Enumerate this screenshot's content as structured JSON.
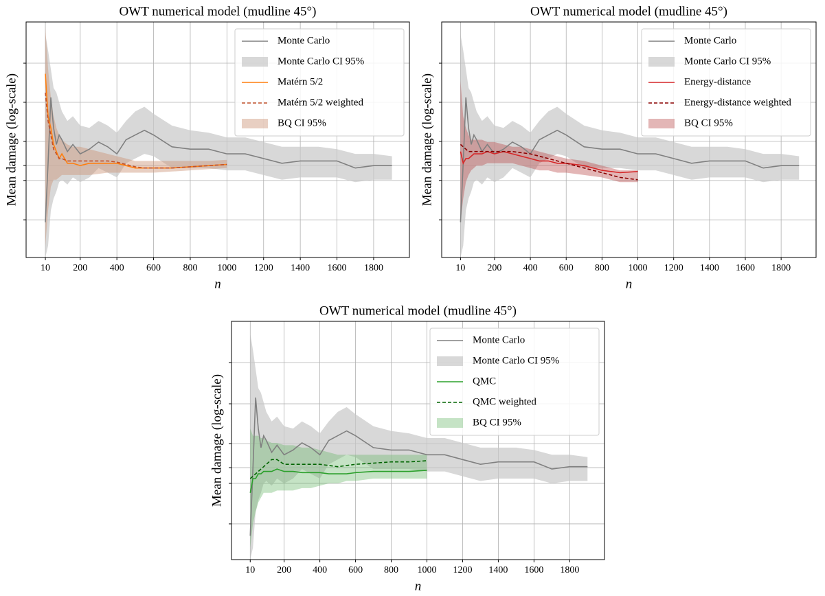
{
  "chart_data": [
    {
      "type": "line",
      "title": "OWT numerical model (mudline 45°)",
      "xlabel": "n",
      "ylabel": "Mean damage (log-scale)",
      "log_scale": true,
      "grid": true,
      "legend": "upper right",
      "x": [
        10,
        25,
        40,
        55,
        70,
        85,
        100,
        130,
        160,
        200,
        250,
        300,
        350,
        400,
        450,
        500,
        550,
        600,
        700,
        800,
        900,
        1000,
        1100,
        1200,
        1300,
        1400,
        1500,
        1600,
        1700,
        1800,
        1900
      ],
      "xlim": [
        -95,
        1995
      ],
      "xticks": [
        10,
        200,
        400,
        600,
        800,
        1000,
        1200,
        1400,
        1600,
        1800
      ],
      "ylim": [
        0,
        100
      ],
      "ygrid": [
        82.5,
        65.9,
        49.3,
        39.1,
        32.7,
        16.0
      ],
      "series": [
        {
          "name": "Monte Carlo",
          "kind": "line",
          "style": "solid",
          "color": "#808080",
          "values": [
            15,
            40,
            68,
            55,
            48,
            52,
            50,
            45,
            48,
            44,
            46,
            49,
            47,
            44,
            50,
            52,
            54,
            52,
            47,
            46,
            46,
            44,
            44,
            42,
            40,
            41,
            41,
            41,
            38,
            39,
            39
          ]
        },
        {
          "name": "Monte Carlo CI 95%",
          "kind": "band",
          "color": "#c8c8c8",
          "opacity": 0.7,
          "upper": [
            95,
            88,
            80,
            72,
            70,
            66,
            62,
            58,
            60,
            56,
            55,
            58,
            56,
            53,
            58,
            62,
            64,
            61,
            56,
            54,
            53,
            51,
            51,
            49,
            47,
            47,
            47,
            46,
            44,
            44,
            43
          ],
          "lower": [
            0,
            5,
            20,
            25,
            28,
            32,
            33,
            31,
            34,
            32,
            34,
            38,
            36,
            34,
            40,
            42,
            44,
            43,
            38,
            38,
            38,
            37,
            37,
            35,
            33,
            34,
            34,
            34,
            32,
            33,
            33
          ]
        },
        {
          "name": "Matérn 5/2",
          "kind": "line",
          "style": "solid",
          "color": "#ff7f0e",
          "values": [
            78,
            60,
            55,
            48,
            45,
            42,
            44,
            40,
            40,
            39,
            40,
            40,
            40,
            40,
            39,
            38,
            38,
            38,
            38,
            38.5,
            39,
            39.5,
            null,
            null,
            null,
            null,
            null,
            null,
            null,
            null,
            null
          ]
        },
        {
          "name": "Matérn 5/2 weighted",
          "kind": "line",
          "style": "dashed",
          "color": "#c0502c",
          "values": [
            70,
            58,
            52,
            46,
            44,
            42,
            42,
            41,
            41,
            41,
            41,
            41,
            41,
            40.5,
            39.5,
            38.5,
            38,
            38,
            38,
            38.5,
            39,
            39.5,
            null,
            null,
            null,
            null,
            null,
            null,
            null,
            null,
            null
          ]
        },
        {
          "name": "BQ CI 95%",
          "kind": "band",
          "color": "#cd9578",
          "opacity": 0.45,
          "upper": [
            98,
            80,
            68,
            60,
            55,
            52,
            50,
            48,
            47,
            47,
            46,
            45,
            44,
            43,
            42,
            41,
            41,
            41,
            41,
            41,
            41,
            41.5,
            null,
            null,
            null,
            null,
            null,
            null,
            null,
            null,
            null
          ],
          "lower": [
            5,
            20,
            30,
            33,
            33,
            34,
            35,
            35,
            35,
            35,
            35,
            35.5,
            36,
            36,
            36,
            36,
            36,
            36,
            36.5,
            37,
            37.5,
            38,
            null,
            null,
            null,
            null,
            null,
            null,
            null,
            null,
            null
          ]
        }
      ]
    },
    {
      "type": "line",
      "title": "OWT numerical model (mudline 45°)",
      "xlabel": "n",
      "ylabel": "Mean damage (log-scale)",
      "log_scale": true,
      "grid": true,
      "legend": "upper right",
      "x": [
        10,
        25,
        40,
        55,
        70,
        85,
        100,
        130,
        160,
        200,
        250,
        300,
        350,
        400,
        450,
        500,
        550,
        600,
        700,
        800,
        900,
        1000,
        1100,
        1200,
        1300,
        1400,
        1500,
        1600,
        1700,
        1800,
        1900
      ],
      "xlim": [
        -95,
        1995
      ],
      "xticks": [
        10,
        200,
        400,
        600,
        800,
        1000,
        1200,
        1400,
        1600,
        1800
      ],
      "ylim": [
        0,
        100
      ],
      "ygrid": [
        82.5,
        65.9,
        49.3,
        39.1,
        32.7,
        16.0
      ],
      "series": [
        {
          "name": "Monte Carlo",
          "kind": "line",
          "style": "solid",
          "color": "#808080",
          "values": [
            15,
            40,
            68,
            55,
            48,
            52,
            50,
            45,
            48,
            44,
            46,
            49,
            47,
            44,
            50,
            52,
            54,
            52,
            47,
            46,
            46,
            44,
            44,
            42,
            40,
            41,
            41,
            41,
            38,
            39,
            39
          ]
        },
        {
          "name": "Monte Carlo CI 95%",
          "kind": "band",
          "color": "#c8c8c8",
          "opacity": 0.7,
          "upper": [
            95,
            88,
            80,
            72,
            70,
            66,
            62,
            58,
            60,
            56,
            55,
            58,
            56,
            53,
            58,
            62,
            64,
            61,
            56,
            54,
            53,
            51,
            51,
            49,
            47,
            47,
            47,
            46,
            44,
            44,
            43
          ],
          "lower": [
            0,
            5,
            20,
            25,
            28,
            32,
            33,
            31,
            34,
            32,
            34,
            38,
            36,
            34,
            40,
            42,
            44,
            43,
            38,
            38,
            38,
            37,
            37,
            35,
            33,
            34,
            34,
            34,
            32,
            33,
            33
          ]
        },
        {
          "name": "Energy-distance",
          "kind": "line",
          "style": "solid",
          "color": "#d62728",
          "values": [
            45,
            40,
            42,
            42,
            43,
            44,
            44,
            44,
            45,
            44,
            45,
            44,
            43,
            42,
            41,
            41,
            40,
            40,
            39,
            37,
            36,
            36.5,
            null,
            null,
            null,
            null,
            null,
            null,
            null,
            null,
            null
          ]
        },
        {
          "name": "Energy-distance weighted",
          "kind": "line",
          "style": "dashed",
          "color": "#8b0000",
          "values": [
            48,
            47,
            46,
            45,
            45,
            45,
            45,
            45,
            45,
            45,
            45,
            45,
            44.5,
            44,
            43,
            42,
            41,
            40,
            38,
            36,
            34,
            33,
            null,
            null,
            null,
            null,
            null,
            null,
            null,
            null,
            null
          ]
        },
        {
          "name": "BQ CI 95%",
          "kind": "band",
          "color": "#b84848",
          "opacity": 0.4,
          "upper": [
            75,
            60,
            55,
            52,
            50,
            50,
            50,
            50,
            49,
            49,
            48,
            47,
            47,
            46,
            45,
            44,
            43,
            42,
            41,
            39,
            37,
            37,
            null,
            null,
            null,
            null,
            null,
            null,
            null,
            null,
            null
          ],
          "lower": [
            15,
            25,
            32,
            35,
            37,
            38,
            39,
            39,
            40,
            40,
            40,
            40,
            39,
            38,
            37,
            37,
            36,
            36,
            35,
            34,
            32,
            32,
            null,
            null,
            null,
            null,
            null,
            null,
            null,
            null,
            null
          ]
        }
      ]
    },
    {
      "type": "line",
      "title": "OWT numerical model (mudline 45°)",
      "xlabel": "n",
      "ylabel": "Mean damage (log-scale)",
      "log_scale": true,
      "grid": true,
      "legend": "upper right",
      "x": [
        10,
        25,
        40,
        55,
        70,
        85,
        100,
        130,
        160,
        200,
        250,
        300,
        350,
        400,
        450,
        500,
        550,
        600,
        700,
        800,
        900,
        1000,
        1100,
        1200,
        1300,
        1400,
        1500,
        1600,
        1700,
        1800,
        1900
      ],
      "xlim": [
        -95,
        1995
      ],
      "xticks": [
        10,
        200,
        400,
        600,
        800,
        1000,
        1200,
        1400,
        1600,
        1800
      ],
      "ylim": [
        0,
        100
      ],
      "ygrid": [
        82.7,
        65.4,
        48.7,
        38.6,
        32.0,
        15.0
      ],
      "series": [
        {
          "name": "Monte Carlo",
          "kind": "line",
          "style": "solid",
          "color": "#808080",
          "values": [
            10,
            38,
            68,
            55,
            47,
            52,
            50,
            45,
            48,
            44,
            46,
            49,
            47,
            44,
            50,
            52,
            54,
            52,
            47,
            46,
            46,
            44,
            44,
            42,
            40,
            41,
            41,
            41,
            38,
            39,
            39
          ]
        },
        {
          "name": "Monte Carlo CI 95%",
          "kind": "band",
          "color": "#c8c8c8",
          "opacity": 0.7,
          "upper": [
            95,
            88,
            80,
            72,
            70,
            66,
            62,
            58,
            60,
            56,
            55,
            58,
            56,
            53,
            58,
            62,
            64,
            61,
            56,
            54,
            53,
            51,
            51,
            49,
            47,
            47,
            47,
            46,
            44,
            44,
            43
          ],
          "lower": [
            0,
            5,
            20,
            25,
            28,
            32,
            33,
            31,
            34,
            32,
            34,
            38,
            36,
            34,
            40,
            42,
            44,
            43,
            38,
            38,
            38,
            37,
            37,
            35,
            33,
            34,
            34,
            34,
            32,
            33,
            33
          ]
        },
        {
          "name": "QMC",
          "kind": "line",
          "style": "solid",
          "color": "#2ca02c",
          "values": [
            28,
            34,
            34,
            36,
            36,
            37,
            37,
            37,
            38,
            37,
            37,
            36.5,
            36.5,
            36.5,
            36,
            36,
            36,
            36.5,
            37,
            37,
            37,
            37.5,
            null,
            null,
            null,
            null,
            null,
            null,
            null,
            null,
            null
          ]
        },
        {
          "name": "QMC weighted",
          "kind": "line",
          "style": "dashed",
          "color": "#006400",
          "values": [
            34,
            35,
            36,
            37,
            38,
            39,
            40,
            42,
            42,
            40,
            40,
            40,
            40,
            40,
            39.5,
            39,
            39.5,
            40,
            40.5,
            41,
            41,
            41.5,
            null,
            null,
            null,
            null,
            null,
            null,
            null,
            null,
            null
          ]
        },
        {
          "name": "BQ CI 95%",
          "kind": "band",
          "color": "#6fb86f",
          "opacity": 0.4,
          "upper": [
            55,
            52,
            52,
            52,
            51,
            51,
            50,
            49,
            49,
            48,
            48,
            47,
            47,
            46,
            45,
            44,
            44,
            44,
            44,
            44,
            44,
            44,
            null,
            null,
            null,
            null,
            null,
            null,
            null,
            null,
            null
          ],
          "lower": [
            5,
            15,
            20,
            24,
            26,
            28,
            28,
            28,
            29,
            29,
            29,
            30,
            30,
            31,
            32,
            32,
            33,
            33,
            34,
            34,
            34,
            34,
            null,
            null,
            null,
            null,
            null,
            null,
            null,
            null,
            null
          ]
        }
      ]
    }
  ]
}
